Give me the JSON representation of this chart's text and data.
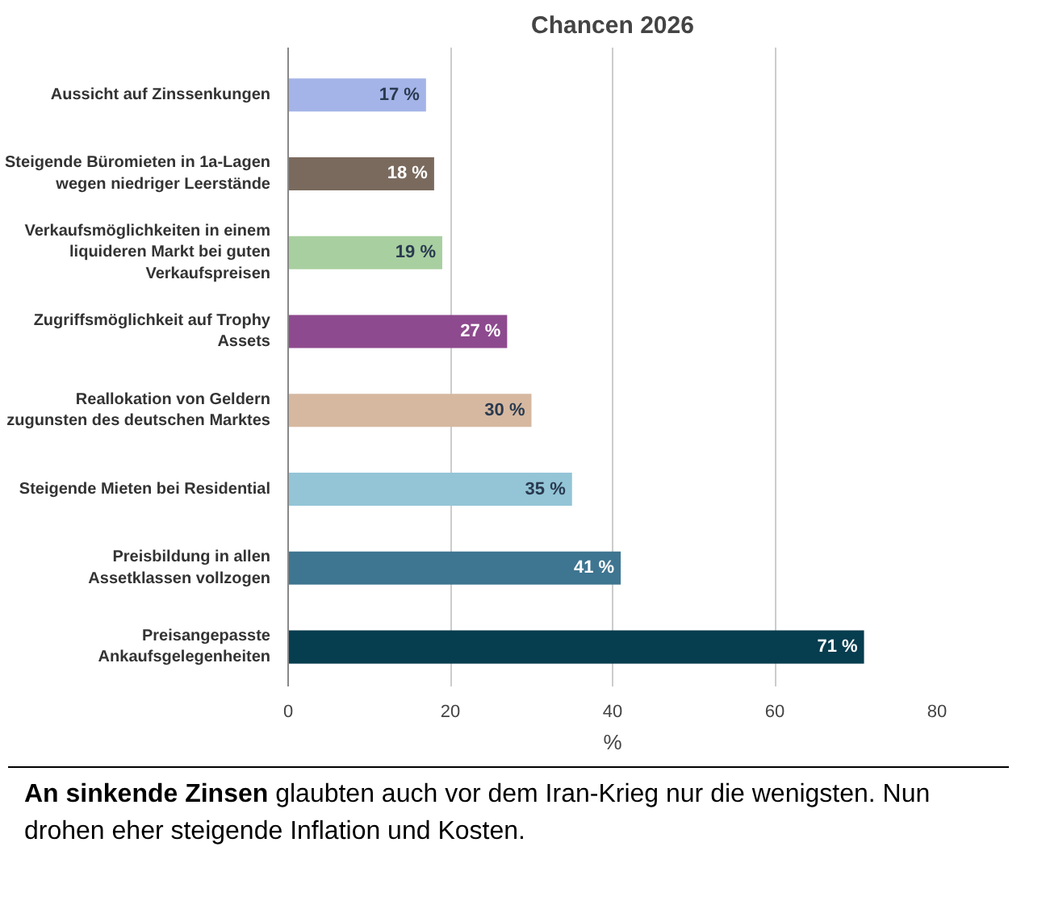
{
  "chart_data": {
    "type": "bar",
    "orientation": "horizontal",
    "title": "Chancen 2026",
    "xlabel": "%",
    "categories": [
      "Aussicht auf Zinssenkungen",
      "Steigende Büromieten in 1a-Lagen wegen niedriger Leerstände",
      "Verkaufsmöglichkeiten in einem liquideren Markt bei guten Verkaufspreisen",
      "Zugriffsmöglichkeit auf Trophy Assets",
      "Reallokation von Geldern zugunsten des deutschen Marktes",
      "Steigende Mieten bei Residential",
      "Preisbildung in allen Assetklassen vollzogen",
      "Preisangepasste Ankaufsgelegenheiten"
    ],
    "values": [
      17,
      18,
      19,
      27,
      30,
      35,
      41,
      71
    ],
    "value_labels": [
      "17 %",
      "18 %",
      "19 %",
      "27 %",
      "30 %",
      "35 %",
      "41 %",
      "71 %"
    ],
    "colors": [
      "#a4b4e8",
      "#7a6a5e",
      "#a8cfa0",
      "#8e4a8e",
      "#d6b8a0",
      "#93c5d6",
      "#3e7590",
      "#063d4f"
    ],
    "xlim": [
      0,
      80
    ],
    "xticks": [
      0,
      20,
      40,
      60,
      80
    ],
    "grid": "x",
    "annotations": [
      "An sinkende Zinsen",
      "glaubten auch vor dem Iran-Krieg nur die wenigsten. Nun drohen eher steigende Inflation und Kosten."
    ]
  }
}
